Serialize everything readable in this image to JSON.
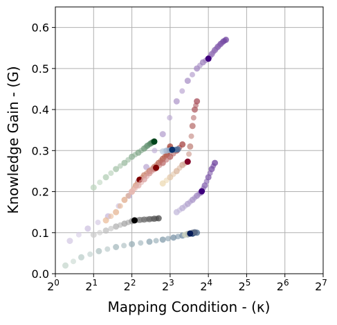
{
  "chart_data": {
    "type": "scatter",
    "title": "",
    "xlabel": "Mapping Condition - (κ)",
    "ylabel": "Knowledge Gain - (G)",
    "x_scale": "log2",
    "xlim": [
      1,
      128
    ],
    "ylim": [
      0,
      0.65
    ],
    "grid": true,
    "legend": "none",
    "x_ticks": [
      {
        "value": 1,
        "base": "2",
        "exp": "0"
      },
      {
        "value": 2,
        "base": "2",
        "exp": "1"
      },
      {
        "value": 4,
        "base": "2",
        "exp": "2"
      },
      {
        "value": 8,
        "base": "2",
        "exp": "3"
      },
      {
        "value": 16,
        "base": "2",
        "exp": "4"
      },
      {
        "value": 32,
        "base": "2",
        "exp": "5"
      },
      {
        "value": 64,
        "base": "2",
        "exp": "6"
      },
      {
        "value": 128,
        "base": "2",
        "exp": "7"
      }
    ],
    "y_ticks": [
      {
        "value": 0.0,
        "label": "0.0"
      },
      {
        "value": 0.1,
        "label": "0.1"
      },
      {
        "value": 0.2,
        "label": "0.2"
      },
      {
        "value": 0.3,
        "label": "0.3"
      },
      {
        "value": 0.4,
        "label": "0.4"
      },
      {
        "value": 0.5,
        "label": "0.5"
      },
      {
        "value": 0.6,
        "label": "0.6"
      }
    ],
    "series": [
      {
        "color_light": "#eeeef6",
        "color_dark": "#3f007d",
        "end": [
          16.0,
          0.524
        ],
        "x": [
          1.3,
          1.8,
          2.6,
          3.8,
          5.2,
          7.0,
          9.0,
          11.0,
          13.0,
          14.5,
          16.0,
          17.0,
          18.0,
          19.0,
          20.0,
          21.0,
          22.0
        ],
        "y": [
          0.08,
          0.11,
          0.14,
          0.19,
          0.26,
          0.34,
          0.42,
          0.47,
          0.5,
          0.515,
          0.524,
          0.535,
          0.545,
          0.553,
          0.56,
          0.566,
          0.57
        ]
      },
      {
        "color_light": "#fee0b6",
        "color_dark": "#7f0000",
        "end": [
          4.6,
          0.229
        ],
        "x": [
          2.5,
          3.0,
          3.5,
          4.0,
          4.3,
          4.6,
          5.0,
          5.5,
          6.0,
          6.5,
          7.0,
          7.5,
          7.8,
          8.0
        ],
        "y": [
          0.13,
          0.15,
          0.18,
          0.2,
          0.215,
          0.229,
          0.24,
          0.25,
          0.26,
          0.27,
          0.28,
          0.29,
          0.3,
          0.31
        ]
      },
      {
        "color_light": "#e0f0dc",
        "color_dark": "#00441b",
        "end": [
          6.0,
          0.322
        ],
        "x": [
          2.0,
          2.5,
          3.0,
          3.5,
          4.0,
          4.5,
          5.0,
          5.3,
          5.6,
          5.8,
          6.0
        ],
        "y": [
          0.21,
          0.235,
          0.255,
          0.27,
          0.285,
          0.295,
          0.305,
          0.312,
          0.317,
          0.32,
          0.322
        ]
      },
      {
        "color_light": "#e8f4e0",
        "color_dark": "#08306b",
        "end": [
          12.0,
          0.098
        ],
        "x": [
          1.2,
          1.6,
          2.2,
          3.0,
          4.0,
          5.5,
          7.0,
          8.5,
          10.0,
          11.0,
          12.0,
          13.0
        ],
        "y": [
          0.02,
          0.04,
          0.055,
          0.065,
          0.072,
          0.078,
          0.083,
          0.088,
          0.093,
          0.096,
          0.098,
          0.1
        ]
      },
      {
        "color_light": "#f0f0f0",
        "color_dark": "#000000",
        "end": [
          4.2,
          0.13
        ],
        "x": [
          2.0,
          2.5,
          3.0,
          3.5,
          4.0,
          4.2,
          4.6,
          5.0,
          5.5,
          6.0,
          6.5
        ],
        "y": [
          0.095,
          0.105,
          0.115,
          0.122,
          0.128,
          0.13,
          0.131,
          0.132,
          0.133,
          0.134,
          0.135
        ]
      },
      {
        "color_light": "#fde0dd",
        "color_dark": "#7f0000",
        "end": [
          6.2,
          0.258
        ],
        "x": [
          4.0,
          4.5,
          5.0,
          5.5,
          6.0,
          6.2,
          7.0,
          8.0,
          9.0,
          10.0
        ],
        "y": [
          0.2,
          0.215,
          0.23,
          0.245,
          0.255,
          0.258,
          0.27,
          0.285,
          0.3,
          0.315
        ]
      },
      {
        "color_light": "#dadaeb",
        "color_dark": "#3f007d",
        "end": [
          14.2,
          0.201
        ],
        "x": [
          9.0,
          10.0,
          11.0,
          12.0,
          13.0,
          14.0,
          14.2,
          15.0,
          16.0,
          17.0,
          18.0
        ],
        "y": [
          0.15,
          0.16,
          0.17,
          0.18,
          0.19,
          0.198,
          0.201,
          0.215,
          0.235,
          0.255,
          0.27
        ]
      },
      {
        "color_light": "#ffffcc",
        "color_dark": "#800026",
        "end": [
          11.0,
          0.273
        ],
        "x": [
          7.0,
          8.0,
          9.0,
          10.0,
          11.0,
          11.5,
          12.0,
          12.5,
          13.0
        ],
        "y": [
          0.22,
          0.235,
          0.25,
          0.265,
          0.273,
          0.31,
          0.36,
          0.4,
          0.42
        ]
      },
      {
        "color_light": "#deebf7",
        "color_dark": "#08306b",
        "end": [
          8.3,
          0.302
        ],
        "x": [
          7.0,
          7.5,
          8.0,
          8.3,
          8.8,
          9.2
        ],
        "y": [
          0.298,
          0.3,
          0.301,
          0.302,
          0.302,
          0.303
        ]
      },
      {
        "color_light": "#ffffd9",
        "color_dark": "#081d58",
        "end": [
          11.5,
          0.098
        ],
        "x": [
          10.5,
          11.0,
          11.5,
          12.0,
          12.5
        ],
        "y": [
          0.095,
          0.097,
          0.098,
          0.1,
          0.101
        ]
      }
    ]
  }
}
